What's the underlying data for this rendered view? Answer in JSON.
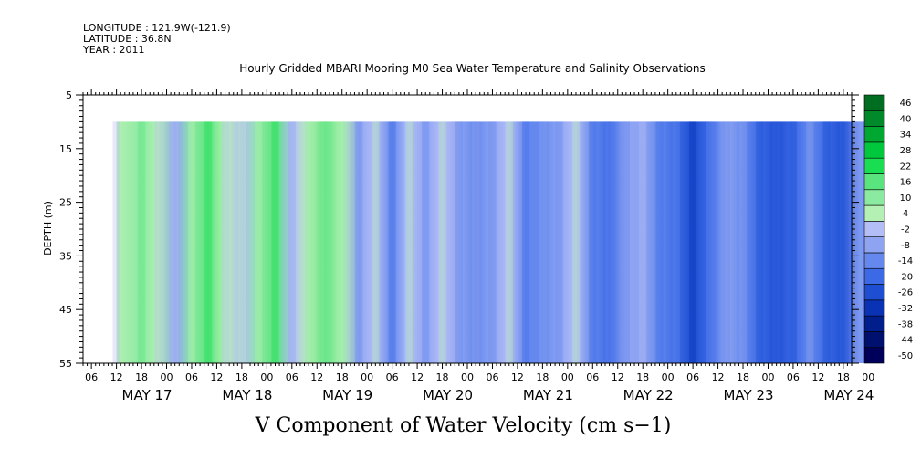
{
  "meta": {
    "longitude": "LONGITUDE : 121.9W(-121.9)",
    "latitude": "LATITUDE : 36.8N",
    "year": "YEAR : 2011"
  },
  "title": "Hourly Gridded MBARI Mooring M0 Sea Water Temperature and Salinity Observations",
  "chart_data": {
    "type": "heatmap",
    "title": "Hourly Gridded MBARI Mooring M0 Sea Water Temperature and Salinity Observations",
    "variable": "V Component of Water Velocity (cm s-1)",
    "ylabel": "DEPTH (m)",
    "ylim": [
      5,
      55
    ],
    "y_inverted": true,
    "y_ticks": [
      5,
      15,
      25,
      35,
      45,
      55
    ],
    "x_range_hours": [
      -14,
      170
    ],
    "x_hour_ticks": [
      {
        "h": -12,
        "label": "06"
      },
      {
        "h": -6,
        "label": "12"
      },
      {
        "h": 0,
        "label": "18"
      },
      {
        "h": 6,
        "label": "00"
      },
      {
        "h": 12,
        "label": "06"
      },
      {
        "h": 18,
        "label": "12"
      },
      {
        "h": 24,
        "label": "18"
      },
      {
        "h": 30,
        "label": "00"
      },
      {
        "h": 36,
        "label": "06"
      },
      {
        "h": 42,
        "label": "12"
      },
      {
        "h": 48,
        "label": "18"
      },
      {
        "h": 54,
        "label": "00"
      },
      {
        "h": 60,
        "label": "06"
      },
      {
        "h": 66,
        "label": "12"
      },
      {
        "h": 72,
        "label": "18"
      },
      {
        "h": 78,
        "label": "00"
      },
      {
        "h": 84,
        "label": "06"
      },
      {
        "h": 90,
        "label": "12"
      },
      {
        "h": 96,
        "label": "18"
      },
      {
        "h": 102,
        "label": "00"
      },
      {
        "h": 108,
        "label": "06"
      },
      {
        "h": 114,
        "label": "12"
      },
      {
        "h": 120,
        "label": "18"
      },
      {
        "h": 126,
        "label": "00"
      },
      {
        "h": 132,
        "label": "06"
      },
      {
        "h": 138,
        "label": "12"
      },
      {
        "h": 144,
        "label": "18"
      },
      {
        "h": 150,
        "label": "00"
      },
      {
        "h": 156,
        "label": "06"
      },
      {
        "h": 162,
        "label": "12"
      },
      {
        "h": 168,
        "label": "18"
      },
      {
        "h": 174,
        "label": "00"
      }
    ],
    "x_day_labels": [
      {
        "h": 0,
        "label": "MAY 17"
      },
      {
        "h": 24,
        "label": "MAY 18"
      },
      {
        "h": 48,
        "label": "MAY 19"
      },
      {
        "h": 72,
        "label": "MAY 20"
      },
      {
        "h": 96,
        "label": "MAY 21"
      },
      {
        "h": 120,
        "label": "MAY 22"
      },
      {
        "h": 144,
        "label": "MAY 23"
      },
      {
        "h": 168,
        "label": "MAY 24"
      }
    ],
    "data_extent": {
      "start_hour": -6,
      "end_hour": 174,
      "top_depth": 10,
      "bottom_depth": 55
    },
    "columns": [
      {
        "h": -6,
        "v": 6
      },
      {
        "h": 0,
        "v": 12
      },
      {
        "h": 4,
        "v": 4
      },
      {
        "h": 8,
        "v": -4
      },
      {
        "h": 12,
        "v": 10
      },
      {
        "h": 16,
        "v": 18
      },
      {
        "h": 20,
        "v": 8
      },
      {
        "h": 24,
        "v": 0
      },
      {
        "h": 28,
        "v": 14
      },
      {
        "h": 32,
        "v": 20
      },
      {
        "h": 36,
        "v": 2
      },
      {
        "h": 40,
        "v": 8
      },
      {
        "h": 44,
        "v": 20
      },
      {
        "h": 48,
        "v": 6
      },
      {
        "h": 52,
        "v": -8
      },
      {
        "h": 56,
        "v": -2
      },
      {
        "h": 60,
        "v": -10
      },
      {
        "h": 64,
        "v": 2
      },
      {
        "h": 68,
        "v": -6
      },
      {
        "h": 72,
        "v": 0
      },
      {
        "h": 76,
        "v": -8
      },
      {
        "h": 80,
        "v": -12
      },
      {
        "h": 84,
        "v": -6
      },
      {
        "h": 88,
        "v": 2
      },
      {
        "h": 92,
        "v": -10
      },
      {
        "h": 96,
        "v": -14
      },
      {
        "h": 100,
        "v": -6
      },
      {
        "h": 104,
        "v": 0
      },
      {
        "h": 108,
        "v": -12
      },
      {
        "h": 112,
        "v": -20
      },
      {
        "h": 116,
        "v": -8
      },
      {
        "h": 120,
        "v": -4
      },
      {
        "h": 124,
        "v": -12
      },
      {
        "h": 128,
        "v": -18
      },
      {
        "h": 132,
        "v": -22
      },
      {
        "h": 136,
        "v": -16
      },
      {
        "h": 140,
        "v": -6
      },
      {
        "h": 144,
        "v": -14
      },
      {
        "h": 148,
        "v": -20
      },
      {
        "h": 152,
        "v": -26
      },
      {
        "h": 156,
        "v": -18
      },
      {
        "h": 160,
        "v": -10
      },
      {
        "h": 164,
        "v": -16
      },
      {
        "h": 168,
        "v": -22
      },
      {
        "h": 172,
        "v": -8
      }
    ],
    "colorbar": {
      "levels": [
        -50,
        -44,
        -38,
        -32,
        -26,
        -20,
        -14,
        -8,
        -2,
        4,
        10,
        16,
        22,
        28,
        34,
        40,
        46
      ],
      "labels": [
        "46",
        "40",
        "34",
        "28",
        "22",
        "16",
        "10",
        "4",
        "-2",
        "-8",
        "-14",
        "-20",
        "-26",
        "-32",
        "-38",
        "-44",
        "-50"
      ],
      "colors_low_to_high": [
        "#00005a",
        "#00106e",
        "#001e8c",
        "#0a32b4",
        "#1e4ed2",
        "#3c6ae6",
        "#6488ee",
        "#8ea4f2",
        "#b4bef6",
        "#b4f0b4",
        "#8aeaa0",
        "#5ae47e",
        "#1ade52",
        "#00c83c",
        "#00a832",
        "#008a2a",
        "#006e20"
      ]
    }
  },
  "subtitle": "V Component of Water Velocity (cm s−1)"
}
